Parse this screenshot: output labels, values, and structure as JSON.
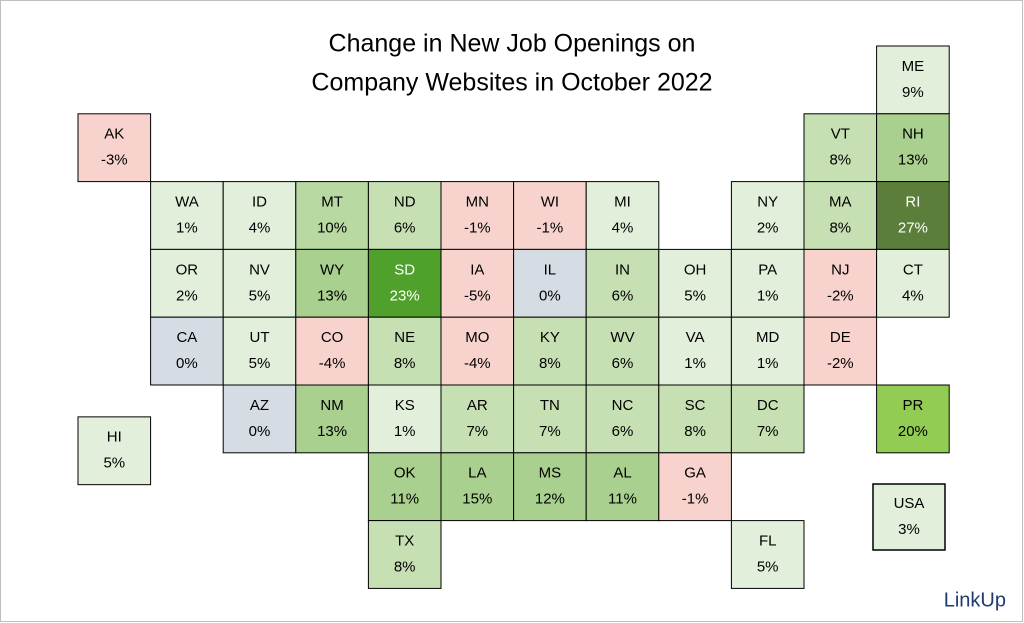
{
  "title": [
    "Change in New Job Openings on",
    "Company Websites in October 2022"
  ],
  "tiles": [
    {
      "state": "ME",
      "value": "9%",
      "color": "#e2efda"
    },
    {
      "state": "AK",
      "value": "-3%",
      "color": "#f8d3cd"
    },
    {
      "state": "VT",
      "value": "8%",
      "color": "#c6e0b4"
    },
    {
      "state": "NH",
      "value": "13%",
      "color": "#a9d08e"
    },
    {
      "state": "WA",
      "value": "1%",
      "color": "#e2efda"
    },
    {
      "state": "ID",
      "value": "4%",
      "color": "#e2efda"
    },
    {
      "state": "MT",
      "value": "10%",
      "color": "#b9d9a2"
    },
    {
      "state": "ND",
      "value": "6%",
      "color": "#c6e0b4"
    },
    {
      "state": "MN",
      "value": "-1%",
      "color": "#f8d3cd"
    },
    {
      "state": "WI",
      "value": "-1%",
      "color": "#f8d3cd"
    },
    {
      "state": "MI",
      "value": "4%",
      "color": "#e2efda"
    },
    {
      "state": "NY",
      "value": "2%",
      "color": "#e2efda"
    },
    {
      "state": "MA",
      "value": "8%",
      "color": "#c6e0b4"
    },
    {
      "state": "RI",
      "value": "27%",
      "color": "#5b7f3a",
      "text_color": "#ffffff"
    },
    {
      "state": "OR",
      "value": "2%",
      "color": "#e2efda"
    },
    {
      "state": "NV",
      "value": "5%",
      "color": "#e2efda"
    },
    {
      "state": "WY",
      "value": "13%",
      "color": "#a9d08e"
    },
    {
      "state": "SD",
      "value": "23%",
      "color": "#4fa12c",
      "text_color": "#ffffff"
    },
    {
      "state": "IA",
      "value": "-5%",
      "color": "#f8d3cd"
    },
    {
      "state": "IL",
      "value": "0%",
      "color": "#d6dce4"
    },
    {
      "state": "IN",
      "value": "6%",
      "color": "#c6e0b4"
    },
    {
      "state": "OH",
      "value": "5%",
      "color": "#e2efda"
    },
    {
      "state": "PA",
      "value": "1%",
      "color": "#e2efda"
    },
    {
      "state": "NJ",
      "value": "-2%",
      "color": "#f8d3cd"
    },
    {
      "state": "CT",
      "value": "4%",
      "color": "#e2efda"
    },
    {
      "state": "CA",
      "value": "0%",
      "color": "#d6dce4"
    },
    {
      "state": "UT",
      "value": "5%",
      "color": "#e2efda"
    },
    {
      "state": "CO",
      "value": "-4%",
      "color": "#f8d3cd"
    },
    {
      "state": "NE",
      "value": "8%",
      "color": "#c6e0b4"
    },
    {
      "state": "MO",
      "value": "-4%",
      "color": "#f8d3cd"
    },
    {
      "state": "KY",
      "value": "8%",
      "color": "#c6e0b4"
    },
    {
      "state": "WV",
      "value": "6%",
      "color": "#c6e0b4"
    },
    {
      "state": "VA",
      "value": "1%",
      "color": "#e2efda"
    },
    {
      "state": "MD",
      "value": "1%",
      "color": "#e2efda"
    },
    {
      "state": "DE",
      "value": "-2%",
      "color": "#f8d3cd"
    },
    {
      "state": "AZ",
      "value": "0%",
      "color": "#d6dce4"
    },
    {
      "state": "NM",
      "value": "13%",
      "color": "#a9d08e"
    },
    {
      "state": "KS",
      "value": "1%",
      "color": "#e2efda"
    },
    {
      "state": "AR",
      "value": "7%",
      "color": "#c6e0b4"
    },
    {
      "state": "TN",
      "value": "7%",
      "color": "#c6e0b4"
    },
    {
      "state": "NC",
      "value": "6%",
      "color": "#c6e0b4"
    },
    {
      "state": "SC",
      "value": "8%",
      "color": "#c6e0b4"
    },
    {
      "state": "DC",
      "value": "7%",
      "color": "#c6e0b4"
    },
    {
      "state": "PR",
      "value": "20%",
      "color": "#92cc52"
    },
    {
      "state": "HI",
      "value": "5%",
      "color": "#e2efda"
    },
    {
      "state": "OK",
      "value": "11%",
      "color": "#a9d08e"
    },
    {
      "state": "LA",
      "value": "15%",
      "color": "#a9d08e"
    },
    {
      "state": "MS",
      "value": "12%",
      "color": "#a9d08e"
    },
    {
      "state": "AL",
      "value": "11%",
      "color": "#a9d08e"
    },
    {
      "state": "GA",
      "value": "-1%",
      "color": "#f8d3cd"
    },
    {
      "state": "TX",
      "value": "8%",
      "color": "#c6e0b4"
    },
    {
      "state": "FL",
      "value": "5%",
      "color": "#e2efda"
    },
    {
      "state": "USA",
      "value": "3%",
      "color": "#e2efda"
    }
  ],
  "logo": "LinkUp"
}
